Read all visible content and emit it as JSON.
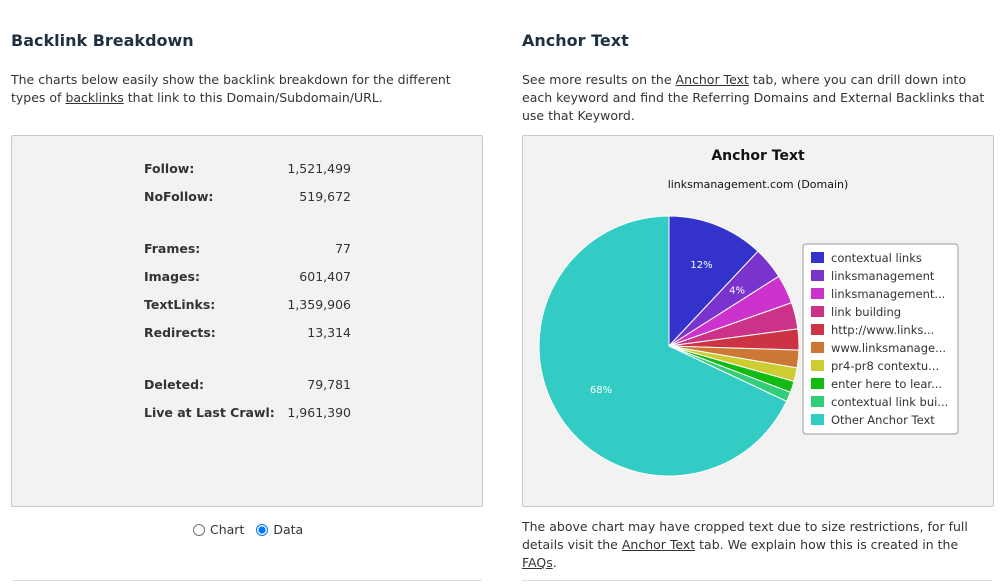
{
  "left": {
    "heading": "Backlink Breakdown",
    "intro_before": "The charts below easily show the backlink breakdown for the different types of ",
    "intro_link": "backlinks",
    "intro_after": " that link to this Domain/Subdomain/URL.",
    "stats": [
      {
        "label": "Follow:",
        "value": "1,521,499"
      },
      {
        "label": "NoFollow:",
        "value": "519,672"
      },
      {
        "label": "Frames:",
        "value": "77"
      },
      {
        "label": "Images:",
        "value": "601,407"
      },
      {
        "label": "TextLinks:",
        "value": "1,359,906"
      },
      {
        "label": "Redirects:",
        "value": "13,314"
      },
      {
        "label": "Deleted:",
        "value": "79,781"
      },
      {
        "label": "Live at Last Crawl:",
        "value": "1,961,390"
      }
    ],
    "toggle": {
      "chart_label": "Chart",
      "data_label": "Data",
      "selected": "Data"
    }
  },
  "right": {
    "heading": "Anchor Text",
    "intro_before": "See more results on the ",
    "intro_link": "Anchor Text",
    "intro_after": " tab, where you can drill down into each keyword and find the Referring Domains and External Backlinks that use that Keyword.",
    "footer_before": "The above chart may have cropped text due to size restrictions, for full details visit the ",
    "footer_link1": "Anchor Text",
    "footer_mid": " tab. We explain how this is created in the ",
    "footer_link2": "FAQs",
    "footer_after": "."
  },
  "chart_data": {
    "type": "pie",
    "title": "Anchor Text",
    "subtitle": "linksmanagement.com (Domain)",
    "legend_position": "right",
    "slices": [
      {
        "label": "contextual links",
        "value": 12,
        "color": "#3333cc",
        "pct_label": "12%"
      },
      {
        "label": "linksmanagement",
        "value": 4,
        "color": "#7a33cc",
        "pct_label": "4%"
      },
      {
        "label": "linksmanagement...",
        "value": 3.6,
        "color": "#cc33cc",
        "pct_label": ""
      },
      {
        "label": "link building",
        "value": 3.3,
        "color": "#cc3388",
        "pct_label": ""
      },
      {
        "label": "http://www.links...",
        "value": 2.6,
        "color": "#cc3344",
        "pct_label": ""
      },
      {
        "label": "www.linksmanage...",
        "value": 2.2,
        "color": "#cc7733",
        "pct_label": ""
      },
      {
        "label": "pr4-pr8 contextu...",
        "value": 1.7,
        "color": "#cccc33",
        "pct_label": ""
      },
      {
        "label": "enter here to lear...",
        "value": 1.4,
        "color": "#11bb11",
        "pct_label": ""
      },
      {
        "label": "contextual link bui...",
        "value": 1.2,
        "color": "#33cc77",
        "pct_label": ""
      },
      {
        "label": "Other Anchor Text",
        "value": 68,
        "color": "#33ccc4",
        "pct_label": "68%"
      }
    ]
  }
}
